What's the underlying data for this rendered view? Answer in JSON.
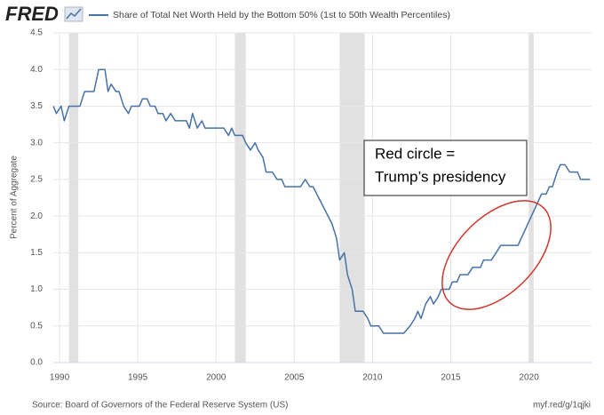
{
  "chart_data": {
    "type": "line",
    "brand": "FRED",
    "ylabel": "Percent of Aggregate",
    "source": "Source: Board of Governors of the Federal Reserve System (US)",
    "link": "myf.red/g/1qjki",
    "annotation": [
      "Red circle =",
      "Trump’s presidency"
    ],
    "xlim": [
      1989.6,
      2024.0
    ],
    "ylim": [
      0,
      4.5
    ],
    "xticks": [
      1990,
      1995,
      2000,
      2005,
      2010,
      2015,
      2020
    ],
    "yticks": [
      {
        "value": 0,
        "label": "0.0"
      },
      0.5,
      {
        "value": 1,
        "label": "1.0"
      },
      1.5,
      {
        "value": 2,
        "label": "2.0"
      },
      2.5,
      {
        "value": 3,
        "label": "3.0"
      },
      3.5,
      {
        "value": 4,
        "label": "4.0"
      },
      4.5
    ],
    "grid": true,
    "recessions": [
      [
        1990.6,
        1991.2
      ],
      [
        2001.2,
        2001.9
      ],
      [
        2007.9,
        2009.5
      ],
      [
        2020.0,
        2020.3
      ]
    ],
    "recession_color": "#e1e1e1",
    "x": [
      1989.6,
      1989.8,
      1990.1,
      1990.3,
      1990.6,
      1991.3,
      1991.6,
      1992.2,
      1992.5,
      1992.9,
      1993.1,
      1993.3,
      1993.6,
      1993.8,
      1994.1,
      1994.4,
      1994.6,
      1995.1,
      1995.3,
      1995.6,
      1995.8,
      1996.1,
      1996.3,
      1996.6,
      1996.8,
      1997.1,
      1997.4,
      1998.1,
      1998.3,
      1998.5,
      1998.8,
      1999.1,
      1999.3,
      2000.5,
      2000.8,
      2001.0,
      2001.2,
      2001.7,
      2001.9,
      2002.2,
      2002.5,
      2002.7,
      2003.0,
      2003.2,
      2003.6,
      2003.9,
      2004.2,
      2004.4,
      2005.4,
      2005.7,
      2006.0,
      2006.2,
      2007.4,
      2007.7,
      2007.9,
      2008.2,
      2008.4,
      2008.7,
      2008.9,
      2009.4,
      2009.7,
      2009.9,
      2010.4,
      2010.7,
      2012.0,
      2012.4,
      2012.7,
      2012.9,
      2013.1,
      2013.4,
      2013.7,
      2013.9,
      2014.2,
      2014.4,
      2014.9,
      2015.1,
      2015.4,
      2015.6,
      2016.1,
      2016.4,
      2016.9,
      2017.1,
      2017.6,
      2017.9,
      2018.2,
      2019.3,
      2020.8,
      2021.1,
      2021.3,
      2021.5,
      2021.8,
      2022.0,
      2022.3,
      2022.6,
      2023.1,
      2023.3,
      2023.9
    ],
    "series": [
      {
        "name": "Share of Total Net Worth Held by the Bottom 50% (1st to 50th Wealth Percentiles)",
        "color": "#4572a7",
        "values": [
          3.5,
          3.4,
          3.5,
          3.3,
          3.5,
          3.5,
          3.7,
          3.7,
          4.0,
          4.0,
          3.7,
          3.8,
          3.7,
          3.7,
          3.5,
          3.4,
          3.5,
          3.5,
          3.6,
          3.6,
          3.5,
          3.5,
          3.4,
          3.4,
          3.3,
          3.4,
          3.3,
          3.3,
          3.2,
          3.4,
          3.2,
          3.3,
          3.2,
          3.2,
          3.1,
          3.2,
          3.1,
          3.1,
          3.0,
          2.9,
          3.0,
          2.9,
          2.8,
          2.6,
          2.6,
          2.5,
          2.5,
          2.4,
          2.4,
          2.5,
          2.4,
          2.4,
          1.9,
          1.7,
          1.4,
          1.5,
          1.2,
          1.0,
          0.7,
          0.7,
          0.6,
          0.5,
          0.5,
          0.4,
          0.4,
          0.5,
          0.6,
          0.7,
          0.6,
          0.8,
          0.9,
          0.8,
          0.9,
          1.0,
          1.0,
          1.1,
          1.1,
          1.2,
          1.2,
          1.3,
          1.3,
          1.4,
          1.4,
          1.5,
          1.6,
          1.6,
          2.3,
          2.3,
          2.4,
          2.4,
          2.6,
          2.7,
          2.7,
          2.6,
          2.6,
          2.5,
          2.5
        ]
      }
    ]
  }
}
